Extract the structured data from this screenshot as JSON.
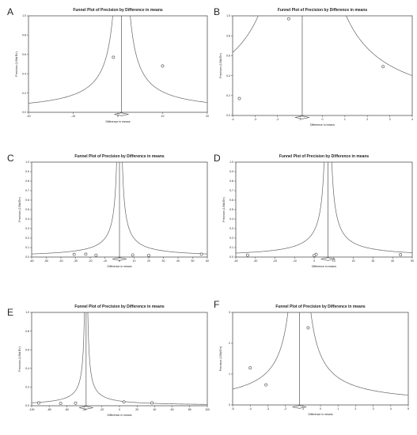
{
  "chart_data": [
    {
      "panel": "A",
      "type": "scatter",
      "title": "Funnel Plot of Precision by Difference in means",
      "xlabel": "Difference in means",
      "ylabel": "Precision (1/Std Err)",
      "xlim": [
        -20,
        20
      ],
      "ylim": [
        0.0,
        1.0
      ],
      "xticks": [
        "-20",
        "-10",
        "0",
        "10",
        "20"
      ],
      "yticks": [
        "0.0",
        "0.2",
        "0.4",
        "0.6",
        "0.8",
        "1.0"
      ],
      "center": 0.8,
      "x": [
        -1.0,
        10.0
      ],
      "y": [
        0.57,
        0.48
      ]
    },
    {
      "panel": "B",
      "type": "scatter",
      "title": "Funnel Plot of Precision by Difference in means",
      "xlabel": "Difference in means",
      "ylabel": "Precision (1/Std Err)",
      "xlim": [
        -4,
        4
      ],
      "ylim": [
        0.0,
        1.0
      ],
      "xticks": [
        "-4",
        "-3",
        "-2",
        "-1",
        "0",
        "1",
        "2",
        "3",
        "4"
      ],
      "yticks": [
        "0.0",
        "0.2",
        "0.4",
        "0.6",
        "0.8",
        "1.0"
      ],
      "center": -0.9,
      "x": [
        -3.7,
        -1.5,
        2.7
      ],
      "y": [
        0.17,
        0.97,
        0.49
      ]
    },
    {
      "panel": "C",
      "type": "scatter",
      "title": "Funnel Plot of Precision by Difference in means",
      "xlabel": "Difference in means",
      "ylabel": "Precision (1/Std Err)",
      "xlim": [
        -60,
        60
      ],
      "ylim": [
        0.0,
        1.0
      ],
      "xticks": [
        "-60",
        "-50",
        "-40",
        "-30",
        "-20",
        "-10",
        "0",
        "10",
        "20",
        "30",
        "40",
        "50",
        "60"
      ],
      "yticks": [
        "0.0",
        "0.1",
        "0.2",
        "0.3",
        "0.4",
        "0.5",
        "0.6",
        "0.7",
        "0.8",
        "0.9",
        "1.0"
      ],
      "center": 0.0,
      "x": [
        -31,
        -23,
        -16,
        9,
        20,
        56
      ],
      "y": [
        0.028,
        0.03,
        0.02,
        0.022,
        0.018,
        0.03
      ]
    },
    {
      "panel": "D",
      "type": "scatter",
      "title": "Funnel Plot of Precision by Difference in means",
      "xlabel": "Difference in means",
      "ylabel": "Precision (1/Std Err)",
      "xlim": [
        -40,
        50
      ],
      "ylim": [
        0.0,
        1.0
      ],
      "xticks": [
        "-40",
        "-30",
        "-20",
        "-10",
        "0",
        "10",
        "20",
        "30",
        "40",
        "50"
      ],
      "yticks": [
        "0.0",
        "0.1",
        "0.2",
        "0.3",
        "0.4",
        "0.5",
        "0.6",
        "0.7",
        "0.8",
        "0.9",
        "1.0"
      ],
      "center": 7.0,
      "x": [
        -34,
        0,
        1,
        44
      ],
      "y": [
        0.02,
        0.018,
        0.028,
        0.025
      ]
    },
    {
      "panel": "E",
      "type": "scatter",
      "title": "Funnel Plot of Precision by Difference in means",
      "xlabel": "Difference in means",
      "ylabel": "Precision (1/Std Err)",
      "xlim": [
        -100,
        100
      ],
      "ylim": [
        0.0,
        1.0
      ],
      "xticks": [
        "-100",
        "-80",
        "-60",
        "-40",
        "-20",
        "0",
        "20",
        "40",
        "60",
        "80",
        "100"
      ],
      "yticks": [
        "0.0",
        "0.2",
        "0.4",
        "0.6",
        "0.8",
        "1.0"
      ],
      "center": -38.0,
      "x": [
        -92,
        -67,
        -50,
        5,
        37
      ],
      "y": [
        0.03,
        0.025,
        0.028,
        0.04,
        0.03
      ]
    },
    {
      "panel": "F",
      "type": "scatter",
      "title": "Funnel Plot of Precision by Difference in means",
      "xlabel": "Difference in means",
      "ylabel": "Precision (1/Std Err)",
      "xlim": [
        -5,
        5
      ],
      "ylim": [
        0,
        3
      ],
      "xticks": [
        "-5",
        "-4",
        "-3",
        "-2",
        "-1",
        "0",
        "1",
        "2",
        "3",
        "4",
        "5"
      ],
      "yticks": [
        "0",
        "1",
        "2",
        "3"
      ],
      "center": -1.2,
      "x": [
        -4.0,
        -3.1,
        -0.7
      ],
      "y": [
        1.2,
        0.65,
        2.5
      ]
    }
  ]
}
